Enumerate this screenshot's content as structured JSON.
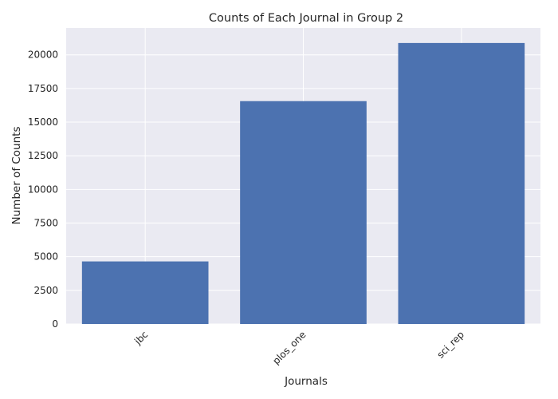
{
  "chart_data": {
    "type": "bar",
    "title": "Counts of Each Journal in Group 2",
    "xlabel": "Journals",
    "ylabel": "Number of Counts",
    "categories": [
      "jbc",
      "plos_one",
      "sci_rep"
    ],
    "values": [
      4650,
      16560,
      20880
    ],
    "ylim": [
      0,
      22000
    ],
    "yticks": [
      0,
      2500,
      5000,
      7500,
      10000,
      12500,
      15000,
      17500,
      20000
    ],
    "grid": true,
    "legend": "none",
    "colors": {
      "bar": "#4c72b0",
      "plot_background": "#eaeaf2",
      "grid": "#ffffff"
    }
  }
}
